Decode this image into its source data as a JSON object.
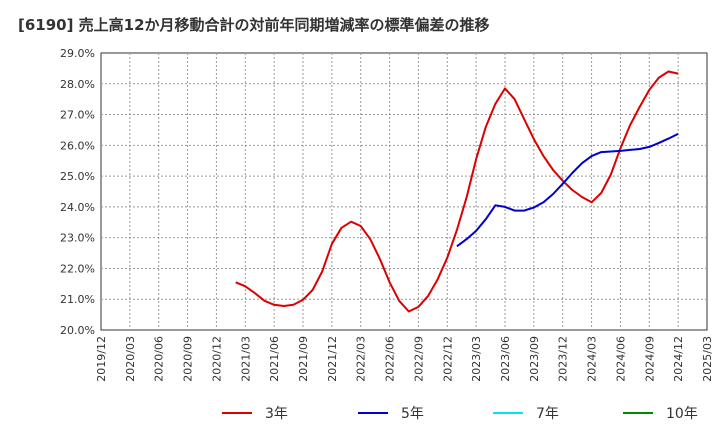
{
  "title": "[6190]  売上高12か月移動合計の対前年同期増減率の標準偏差の推移",
  "chart_data": {
    "type": "line",
    "title": "[6190]  売上高12か月移動合計の対前年同期増減率の標準偏差の推移",
    "y_ticks": [
      "29.0%",
      "28.0%",
      "27.0%",
      "26.0%",
      "25.0%",
      "24.0%",
      "23.0%",
      "22.0%",
      "21.0%",
      "20.0%"
    ],
    "x_ticks": [
      "2019/12",
      "2020/03",
      "2020/06",
      "2020/09",
      "2020/12",
      "2021/03",
      "2021/06",
      "2021/09",
      "2021/12",
      "2022/03",
      "2022/06",
      "2022/09",
      "2022/12",
      "2023/03",
      "2023/06",
      "2023/09",
      "2023/12",
      "2024/03",
      "2024/06",
      "2024/09",
      "2024/12",
      "2025/03"
    ],
    "ylim": [
      20.0,
      29.0
    ],
    "xlim": [
      "2019/12",
      "2025/03"
    ],
    "grid": true,
    "legend_position": "bottom",
    "series": [
      {
        "name": "3年",
        "color": "#dd0000",
        "points": [
          [
            "2021/02",
            21.55
          ],
          [
            "2021/03",
            21.42
          ],
          [
            "2021/04",
            21.2
          ],
          [
            "2021/05",
            20.95
          ],
          [
            "2021/06",
            20.82
          ],
          [
            "2021/07",
            20.78
          ],
          [
            "2021/08",
            20.82
          ],
          [
            "2021/09",
            20.98
          ],
          [
            "2021/10",
            21.3
          ],
          [
            "2021/11",
            21.9
          ],
          [
            "2021/12",
            22.8
          ],
          [
            "2022/01",
            23.32
          ],
          [
            "2022/02",
            23.52
          ],
          [
            "2022/03",
            23.38
          ],
          [
            "2022/04",
            22.95
          ],
          [
            "2022/05",
            22.3
          ],
          [
            "2022/06",
            21.55
          ],
          [
            "2022/07",
            20.95
          ],
          [
            "2022/08",
            20.6
          ],
          [
            "2022/09",
            20.75
          ],
          [
            "2022/10",
            21.1
          ],
          [
            "2022/11",
            21.65
          ],
          [
            "2022/12",
            22.35
          ],
          [
            "2023/01",
            23.25
          ],
          [
            "2023/02",
            24.3
          ],
          [
            "2023/03",
            25.55
          ],
          [
            "2023/04",
            26.6
          ],
          [
            "2023/05",
            27.35
          ],
          [
            "2023/06",
            27.85
          ],
          [
            "2023/07",
            27.5
          ],
          [
            "2023/08",
            26.85
          ],
          [
            "2023/09",
            26.2
          ],
          [
            "2023/10",
            25.65
          ],
          [
            "2023/11",
            25.2
          ],
          [
            "2023/12",
            24.85
          ],
          [
            "2024/01",
            24.55
          ],
          [
            "2024/02",
            24.32
          ],
          [
            "2024/03",
            24.15
          ],
          [
            "2024/04",
            24.45
          ],
          [
            "2024/05",
            25.05
          ],
          [
            "2024/06",
            25.9
          ],
          [
            "2024/07",
            26.65
          ],
          [
            "2024/08",
            27.25
          ],
          [
            "2024/09",
            27.8
          ],
          [
            "2024/10",
            28.2
          ],
          [
            "2024/11",
            28.4
          ],
          [
            "2024/12",
            28.33
          ]
        ]
      },
      {
        "name": "5年",
        "color": "#0000cc",
        "points": [
          [
            "2023/01",
            22.72
          ],
          [
            "2023/02",
            22.95
          ],
          [
            "2023/03",
            23.22
          ],
          [
            "2023/04",
            23.6
          ],
          [
            "2023/05",
            24.05
          ],
          [
            "2023/06",
            24.0
          ],
          [
            "2023/07",
            23.88
          ],
          [
            "2023/08",
            23.88
          ],
          [
            "2023/09",
            23.98
          ],
          [
            "2023/10",
            24.15
          ],
          [
            "2023/11",
            24.42
          ],
          [
            "2023/12",
            24.75
          ],
          [
            "2024/01",
            25.1
          ],
          [
            "2024/02",
            25.42
          ],
          [
            "2024/03",
            25.65
          ],
          [
            "2024/04",
            25.78
          ],
          [
            "2024/05",
            25.8
          ],
          [
            "2024/06",
            25.82
          ],
          [
            "2024/07",
            25.85
          ],
          [
            "2024/08",
            25.88
          ],
          [
            "2024/09",
            25.95
          ],
          [
            "2024/10",
            26.08
          ],
          [
            "2024/11",
            26.22
          ],
          [
            "2024/12",
            26.37
          ]
        ]
      },
      {
        "name": "7年",
        "color": "#00e5ee",
        "points": []
      },
      {
        "name": "10年",
        "color": "#008800",
        "points": []
      }
    ]
  }
}
